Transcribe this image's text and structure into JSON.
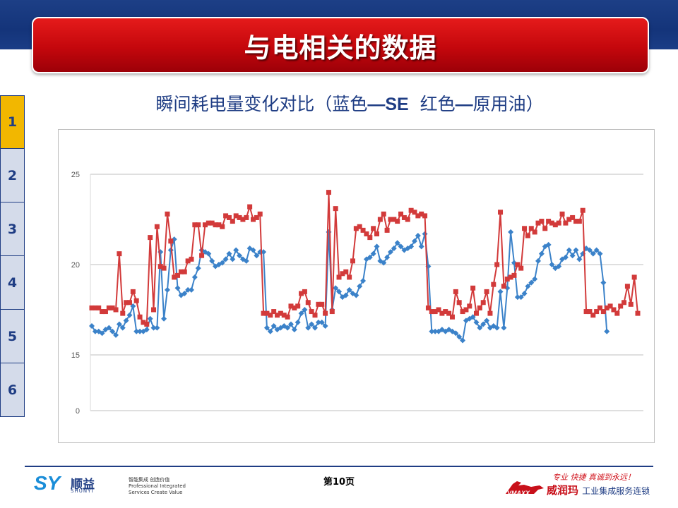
{
  "slide": {
    "title": "与电相关的数据",
    "subtitle_part1": "瞬间耗电量变化对比（蓝色",
    "subtitle_blue": "—SE",
    "subtitle_part2": "红色",
    "subtitle_red": "—",
    "subtitle_part3": "原用油）",
    "page_label": "第10页"
  },
  "sidenav": {
    "tabs": [
      {
        "label": "1",
        "active": true
      },
      {
        "label": "2",
        "active": false
      },
      {
        "label": "3",
        "active": false
      },
      {
        "label": "4",
        "active": false
      },
      {
        "label": "5",
        "active": false
      },
      {
        "label": "6",
        "active": false
      }
    ]
  },
  "logos": {
    "left_mark": "SY",
    "left_name": "顺益",
    "left_sub": "SHUNYI",
    "left_tag1": "智能集成  创造价值",
    "left_tag2": "Professional Integrated",
    "left_tag3": "Services Create Value",
    "right_slogan": "专业 快捷 真诚到永远！",
    "right_horse": "VMAXX",
    "right_brand": "威润玛",
    "right_service": "工业集成服务连锁"
  },
  "colors": {
    "blue_series": "#3b82c9",
    "red_series": "#d23a3a",
    "axis_text": "#595959",
    "grid": "#bfbfbf"
  },
  "chart_data": {
    "type": "line",
    "title": "",
    "xlabel": "",
    "ylabel": "",
    "y_ticks": [
      "0",
      "15",
      "20",
      "25"
    ],
    "y_scale": "broken: 0 then 15-25",
    "grid": true,
    "legend": "none",
    "series": [
      {
        "color": "#3b82c9",
        "marker": "diamond",
        "values": [
          16.6,
          16.3,
          16.3,
          16.2,
          16.4,
          16.5,
          16.3,
          16.1,
          16.7,
          16.5,
          16.9,
          17.2,
          17.7,
          16.3,
          16.3,
          16.3,
          16.4,
          17.0,
          16.5,
          16.5,
          20.7,
          17.0,
          18.6,
          20.8,
          21.4,
          18.7,
          18.3,
          18.4,
          18.6,
          18.6,
          19.3,
          19.8,
          20.8,
          20.7,
          20.6,
          20.2,
          19.9,
          20.0,
          20.1,
          20.3,
          20.6,
          20.3,
          20.8,
          20.5,
          20.3,
          20.2,
          20.9,
          20.8,
          20.5,
          20.7,
          20.7,
          16.5,
          16.3,
          16.6,
          16.4,
          16.5,
          16.6,
          16.5,
          16.7,
          16.4,
          16.8,
          17.3,
          17.5,
          16.5,
          16.7,
          16.5,
          16.8,
          16.8,
          16.6,
          21.8,
          17.5,
          18.7,
          18.5,
          18.2,
          18.3,
          18.6,
          18.4,
          18.3,
          18.8,
          19.1,
          20.3,
          20.4,
          20.6,
          21.0,
          20.2,
          20.1,
          20.4,
          20.7,
          20.9,
          21.2,
          21.0,
          20.8,
          20.9,
          21.0,
          21.3,
          21.6,
          21.0,
          21.7,
          19.9,
          16.3,
          16.3,
          16.3,
          16.4,
          16.3,
          16.4,
          16.3,
          16.2,
          16.0,
          15.8,
          16.9,
          17.0,
          17.1,
          16.8,
          16.5,
          16.7,
          16.9,
          16.5,
          16.6,
          16.5,
          18.5,
          16.5,
          18.7,
          21.8,
          20.1,
          18.2,
          18.2,
          18.4,
          18.8,
          19.0,
          19.2,
          20.2,
          20.6,
          21.0,
          21.1,
          20.0,
          19.8,
          19.9,
          20.3,
          20.4,
          20.8,
          20.5,
          20.8,
          20.3,
          20.6,
          20.9,
          20.8,
          20.6,
          20.8,
          20.6,
          19.0,
          16.3
        ],
        "x_start": 0
      },
      {
        "color": "#d23a3a",
        "marker": "square",
        "values": [
          17.6,
          17.6,
          17.6,
          17.4,
          17.4,
          17.6,
          17.6,
          17.5,
          20.6,
          17.3,
          17.9,
          17.9,
          18.5,
          18.0,
          17.1,
          16.8,
          16.7,
          21.5,
          17.5,
          22.1,
          19.9,
          19.8,
          22.8,
          21.3,
          19.3,
          19.4,
          19.6,
          19.6,
          20.2,
          20.3,
          22.2,
          22.2,
          20.5,
          22.2,
          22.3,
          22.3,
          22.2,
          22.2,
          22.1,
          22.7,
          22.6,
          22.4,
          22.7,
          22.6,
          22.5,
          22.6,
          23.2,
          22.5,
          22.6,
          22.8,
          17.3,
          17.3,
          17.2,
          17.4,
          17.2,
          17.3,
          17.2,
          17.1,
          17.7,
          17.6,
          17.7,
          18.4,
          18.5,
          17.9,
          17.4,
          17.2,
          17.8,
          17.8,
          17.3,
          24.0,
          17.4,
          23.1,
          19.3,
          19.5,
          19.6,
          19.3,
          20.2,
          22.0,
          22.1,
          21.9,
          21.7,
          21.5,
          22.0,
          21.7,
          22.5,
          22.8,
          21.9,
          22.5,
          22.5,
          22.4,
          22.8,
          22.6,
          22.5,
          23.0,
          22.9,
          22.7,
          22.8,
          22.7,
          17.6,
          17.4,
          17.4,
          17.5,
          17.3,
          17.4,
          17.3,
          17.1,
          18.5,
          17.9,
          17.4,
          17.5,
          17.7,
          18.7,
          17.3,
          17.6,
          17.9,
          18.5,
          17.3,
          18.9,
          20.0,
          22.9,
          18.8,
          19.2,
          19.3,
          19.4,
          20.0,
          19.8,
          22.0,
          21.6,
          22.0,
          21.8,
          22.3,
          22.4,
          22.0,
          22.4,
          22.3,
          22.2,
          22.3,
          22.8,
          22.3,
          22.5,
          22.6,
          22.4,
          22.4,
          23.0,
          17.4,
          17.4,
          17.2,
          17.4,
          17.6,
          17.4,
          17.6,
          17.7,
          17.5,
          17.3,
          17.7,
          17.9,
          18.8,
          17.8,
          19.3,
          17.3
        ],
        "x_start": 0
      }
    ]
  }
}
